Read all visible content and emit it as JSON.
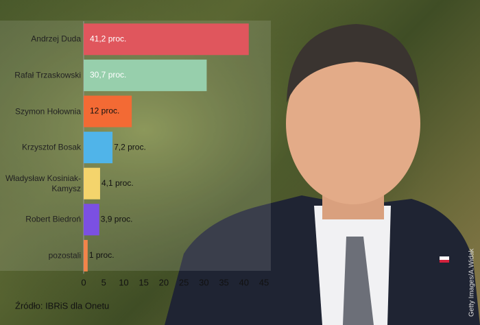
{
  "chart_data": {
    "type": "bar",
    "orientation": "horizontal",
    "categories": [
      "Andrzej Duda",
      "Rafał Trzaskowski",
      "Szymon Hołownia",
      "Krzysztof Bosak",
      "Władysław Kosiniak-Kamysz",
      "Robert Biedroń",
      "pozostali"
    ],
    "values": [
      41.2,
      30.7,
      12,
      7.2,
      4.1,
      3.9,
      1
    ],
    "value_labels": [
      "41,2 proc.",
      "30,7 proc.",
      "12 proc.",
      "7,2 proc.",
      "4,1 proc.",
      "3,9 proc.",
      "1 proc."
    ],
    "colors": [
      "#e0565d",
      "#97cfac",
      "#f36a34",
      "#50b4e9",
      "#f4d46c",
      "#7b50e2",
      "#f2844a"
    ],
    "xlim": [
      0,
      45
    ],
    "xticks": [
      0,
      5,
      10,
      15,
      20,
      25,
      30,
      35,
      40,
      45
    ]
  },
  "source": "Źródło: IBRiS dla Onetu",
  "credit": "Getty Images/A.Widak"
}
